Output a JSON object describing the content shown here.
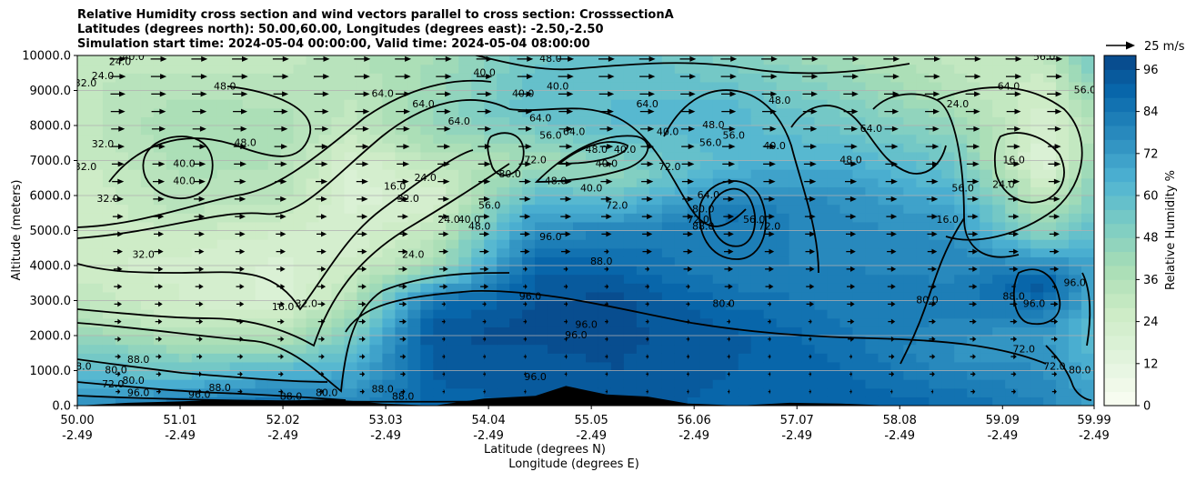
{
  "chart_data": {
    "type": "heatmap",
    "title_lines": [
      "Relative Humidity cross section and wind vectors parallel to cross section: CrosssectionA",
      "Latitudes (degrees north): 50.00,60.00, Longitudes (degrees east): -2.50,-2.50",
      "Simulation start time: 2024-05-04 00:00:00, Valid time: 2024-05-04 08:00:00"
    ],
    "xlabel_lines": [
      "Latitude (degrees N)",
      "Longitude (degrees E)"
    ],
    "ylabel": "Altitude (meters)",
    "x_ticks": [
      {
        "lat": "50.00",
        "lon": "-2.49",
        "v": 50.0
      },
      {
        "lat": "51.01",
        "lon": "-2.49",
        "v": 51.01
      },
      {
        "lat": "52.02",
        "lon": "-2.49",
        "v": 52.02
      },
      {
        "lat": "53.03",
        "lon": "-2.49",
        "v": 53.03
      },
      {
        "lat": "54.04",
        "lon": "-2.49",
        "v": 54.04
      },
      {
        "lat": "55.05",
        "lon": "-2.49",
        "v": 55.05
      },
      {
        "lat": "56.06",
        "lon": "-2.49",
        "v": 56.06
      },
      {
        "lat": "57.07",
        "lon": "-2.49",
        "v": 57.07
      },
      {
        "lat": "58.08",
        "lon": "-2.49",
        "v": 58.08
      },
      {
        "lat": "59.09",
        "lon": "-2.49",
        "v": 59.09
      },
      {
        "lat": "59.99",
        "lon": "-2.49",
        "v": 59.99
      }
    ],
    "xlim": [
      50.0,
      59.99
    ],
    "ylim": [
      0,
      10000
    ],
    "y_ticks": [
      {
        "label": "0.0",
        "v": 0
      },
      {
        "label": "1000.0",
        "v": 1000
      },
      {
        "label": "2000.0",
        "v": 2000
      },
      {
        "label": "3000.0",
        "v": 3000
      },
      {
        "label": "4000.0",
        "v": 4000
      },
      {
        "label": "5000.0",
        "v": 5000
      },
      {
        "label": "6000.0",
        "v": 6000
      },
      {
        "label": "7000.0",
        "v": 7000
      },
      {
        "label": "8000.0",
        "v": 8000
      },
      {
        "label": "9000.0",
        "v": 9000
      },
      {
        "label": "10000.0",
        "v": 10000
      }
    ],
    "grid": "horizontal",
    "colorbar": {
      "label": "Relative Humidity %",
      "range": [
        0,
        100
      ],
      "ticks": [
        {
          "label": "0",
          "v": 0
        },
        {
          "label": "12",
          "v": 12
        },
        {
          "label": "24",
          "v": 24
        },
        {
          "label": "36",
          "v": 36
        },
        {
          "label": "48",
          "v": 48
        },
        {
          "label": "60",
          "v": 60
        },
        {
          "label": "72",
          "v": 72
        },
        {
          "label": "84",
          "v": 84
        },
        {
          "label": "96",
          "v": 96
        }
      ],
      "levels": 25,
      "colors": [
        "#f7fcf0",
        "#e0f3db",
        "#ccebc5",
        "#a8ddb5",
        "#7bccc4",
        "#4eb3d3",
        "#2b8cbe",
        "#0868ac",
        "#084081"
      ]
    },
    "quiver_key": {
      "label": "25 m/s",
      "speed": 25
    },
    "rh_profiles": [
      {
        "lat": 50.0,
        "rh": [
          {
            "z": 0,
            "rh": 75
          },
          {
            "z": 800,
            "rh": 62
          },
          {
            "z": 1500,
            "rh": 55
          },
          {
            "z": 2500,
            "rh": 35
          },
          {
            "z": 4000,
            "rh": 25
          },
          {
            "z": 6000,
            "rh": 24
          },
          {
            "z": 8000,
            "rh": 30
          },
          {
            "z": 10000,
            "rh": 32
          }
        ]
      },
      {
        "lat": 51.0,
        "rh": [
          {
            "z": 0,
            "rh": 85
          },
          {
            "z": 800,
            "rh": 60
          },
          {
            "z": 1500,
            "rh": 45
          },
          {
            "z": 2500,
            "rh": 26
          },
          {
            "z": 4000,
            "rh": 22
          },
          {
            "z": 6000,
            "rh": 35
          },
          {
            "z": 8000,
            "rh": 40
          },
          {
            "z": 10000,
            "rh": 30
          }
        ]
      },
      {
        "lat": 52.0,
        "rh": [
          {
            "z": 0,
            "rh": 88
          },
          {
            "z": 800,
            "rh": 70
          },
          {
            "z": 1500,
            "rh": 45
          },
          {
            "z": 3000,
            "rh": 18
          },
          {
            "z": 4500,
            "rh": 20
          },
          {
            "z": 6000,
            "rh": 34
          },
          {
            "z": 8000,
            "rh": 38
          },
          {
            "z": 10000,
            "rh": 30
          }
        ]
      },
      {
        "lat": 52.7,
        "rh": [
          {
            "z": 0,
            "rh": 80
          },
          {
            "z": 1500,
            "rh": 60
          },
          {
            "z": 3000,
            "rh": 35
          },
          {
            "z": 4500,
            "rh": 22
          },
          {
            "z": 6500,
            "rh": 18
          },
          {
            "z": 8000,
            "rh": 30
          },
          {
            "z": 10000,
            "rh": 35
          }
        ]
      },
      {
        "lat": 53.5,
        "rh": [
          {
            "z": 0,
            "rh": 90
          },
          {
            "z": 2000,
            "rh": 96
          },
          {
            "z": 3000,
            "rh": 85
          },
          {
            "z": 4000,
            "rh": 40
          },
          {
            "z": 6000,
            "rh": 20
          },
          {
            "z": 8000,
            "rh": 45
          },
          {
            "z": 10000,
            "rh": 40
          }
        ]
      },
      {
        "lat": 54.5,
        "rh": [
          {
            "z": 0,
            "rh": 92
          },
          {
            "z": 2500,
            "rh": 98
          },
          {
            "z": 4000,
            "rh": 90
          },
          {
            "z": 5500,
            "rh": 70
          },
          {
            "z": 7000,
            "rh": 40
          },
          {
            "z": 8500,
            "rh": 60
          },
          {
            "z": 10000,
            "rh": 55
          }
        ]
      },
      {
        "lat": 55.3,
        "rh": [
          {
            "z": 0,
            "rh": 95
          },
          {
            "z": 3000,
            "rh": 98
          },
          {
            "z": 5000,
            "rh": 80
          },
          {
            "z": 6500,
            "rh": 45
          },
          {
            "z": 8000,
            "rh": 60
          },
          {
            "z": 10000,
            "rh": 60
          }
        ]
      },
      {
        "lat": 56.4,
        "rh": [
          {
            "z": 0,
            "rh": 90
          },
          {
            "z": 2000,
            "rh": 94
          },
          {
            "z": 4000,
            "rh": 80
          },
          {
            "z": 5500,
            "rh": 85
          },
          {
            "z": 7000,
            "rh": 62
          },
          {
            "z": 8500,
            "rh": 62
          },
          {
            "z": 10000,
            "rh": 50
          }
        ]
      },
      {
        "lat": 57.5,
        "rh": [
          {
            "z": 0,
            "rh": 92
          },
          {
            "z": 2000,
            "rh": 85
          },
          {
            "z": 4000,
            "rh": 80
          },
          {
            "z": 6000,
            "rh": 75
          },
          {
            "z": 8000,
            "rh": 55
          },
          {
            "z": 10000,
            "rh": 40
          }
        ]
      },
      {
        "lat": 58.6,
        "rh": [
          {
            "z": 0,
            "rh": 88
          },
          {
            "z": 1500,
            "rh": 75
          },
          {
            "z": 3000,
            "rh": 82
          },
          {
            "z": 5000,
            "rh": 75
          },
          {
            "z": 7000,
            "rh": 55
          },
          {
            "z": 9000,
            "rh": 35
          },
          {
            "z": 10000,
            "rh": 30
          }
        ]
      },
      {
        "lat": 59.5,
        "rh": [
          {
            "z": 0,
            "rh": 80
          },
          {
            "z": 2000,
            "rh": 72
          },
          {
            "z": 3500,
            "rh": 95
          },
          {
            "z": 5000,
            "rh": 45
          },
          {
            "z": 7000,
            "rh": 15
          },
          {
            "z": 9000,
            "rh": 25
          },
          {
            "z": 10000,
            "rh": 30
          }
        ]
      },
      {
        "lat": 59.99,
        "rh": [
          {
            "z": 0,
            "rh": 70
          },
          {
            "z": 2000,
            "rh": 60
          },
          {
            "z": 4000,
            "rh": 70
          },
          {
            "z": 6000,
            "rh": 50
          },
          {
            "z": 8000,
            "rh": 35
          },
          {
            "z": 10000,
            "rh": 55
          }
        ]
      }
    ],
    "terrain": [
      {
        "lat": 50.0,
        "z": 0
      },
      {
        "lat": 50.5,
        "z": 80
      },
      {
        "lat": 51.0,
        "z": 120
      },
      {
        "lat": 51.5,
        "z": 170
      },
      {
        "lat": 52.0,
        "z": 140
      },
      {
        "lat": 52.5,
        "z": 180
      },
      {
        "lat": 53.0,
        "z": 60
      },
      {
        "lat": 53.5,
        "z": 0
      },
      {
        "lat": 54.0,
        "z": 200
      },
      {
        "lat": 54.5,
        "z": 280
      },
      {
        "lat": 54.8,
        "z": 560
      },
      {
        "lat": 55.2,
        "z": 320
      },
      {
        "lat": 55.6,
        "z": 260
      },
      {
        "lat": 56.0,
        "z": 60
      },
      {
        "lat": 56.5,
        "z": 0
      },
      {
        "lat": 57.0,
        "z": 80
      },
      {
        "lat": 57.5,
        "z": 60
      },
      {
        "lat": 58.0,
        "z": 0
      },
      {
        "lat": 59.99,
        "z": 0
      }
    ],
    "contour_labels": [
      {
        "text": "40.0",
        "lat": 50.55,
        "z": 9950
      },
      {
        "text": "32.0",
        "lat": 50.08,
        "z": 9200
      },
      {
        "text": "24.0",
        "lat": 50.25,
        "z": 9400
      },
      {
        "text": "24.0",
        "lat": 50.42,
        "z": 9800
      },
      {
        "text": "48.0",
        "lat": 51.45,
        "z": 9100
      },
      {
        "text": "48.0",
        "lat": 51.65,
        "z": 7500
      },
      {
        "text": "40.0",
        "lat": 51.05,
        "z": 6900
      },
      {
        "text": "40.0",
        "lat": 51.05,
        "z": 6400
      },
      {
        "text": "32.0",
        "lat": 50.25,
        "z": 7450
      },
      {
        "text": "32.0",
        "lat": 50.08,
        "z": 6800
      },
      {
        "text": "32.0",
        "lat": 50.3,
        "z": 5900
      },
      {
        "text": "32.0",
        "lat": 50.65,
        "z": 4300
      },
      {
        "text": "16.0",
        "lat": 52.02,
        "z": 2800
      },
      {
        "text": "32.0",
        "lat": 52.25,
        "z": 2900
      },
      {
        "text": "16.0",
        "lat": 53.12,
        "z": 6250
      },
      {
        "text": "32.0",
        "lat": 53.25,
        "z": 5900
      },
      {
        "text": "24.0",
        "lat": 53.42,
        "z": 6500
      },
      {
        "text": "24.0",
        "lat": 53.65,
        "z": 5300
      },
      {
        "text": "24.0",
        "lat": 53.3,
        "z": 4300
      },
      {
        "text": "64.0",
        "lat": 53.0,
        "z": 8900
      },
      {
        "text": "64.0",
        "lat": 53.4,
        "z": 8600
      },
      {
        "text": "64.0",
        "lat": 53.75,
        "z": 8100
      },
      {
        "text": "40.0",
        "lat": 54.0,
        "z": 9500
      },
      {
        "text": "48.0",
        "lat": 54.65,
        "z": 9900
      },
      {
        "text": "40.0",
        "lat": 54.38,
        "z": 8900
      },
      {
        "text": "40.0",
        "lat": 54.72,
        "z": 9100
      },
      {
        "text": "64.0",
        "lat": 54.55,
        "z": 8200
      },
      {
        "text": "56.0",
        "lat": 54.65,
        "z": 7700
      },
      {
        "text": "64.0",
        "lat": 54.88,
        "z": 7800
      },
      {
        "text": "48.0",
        "lat": 55.1,
        "z": 7300
      },
      {
        "text": "40.0",
        "lat": 55.38,
        "z": 7300
      },
      {
        "text": "40.0",
        "lat": 55.2,
        "z": 6900
      },
      {
        "text": "40.0",
        "lat": 55.05,
        "z": 6200
      },
      {
        "text": "72.0",
        "lat": 54.5,
        "z": 7000
      },
      {
        "text": "80.0",
        "lat": 54.25,
        "z": 6600
      },
      {
        "text": "48.0",
        "lat": 54.7,
        "z": 6400
      },
      {
        "text": "56.0",
        "lat": 54.05,
        "z": 5700
      },
      {
        "text": "40.0",
        "lat": 53.85,
        "z": 5300
      },
      {
        "text": "48.0",
        "lat": 53.95,
        "z": 5100
      },
      {
        "text": "72.0",
        "lat": 55.3,
        "z": 5700
      },
      {
        "text": "96.0",
        "lat": 54.65,
        "z": 4800
      },
      {
        "text": "88.0",
        "lat": 55.15,
        "z": 4100
      },
      {
        "text": "64.0",
        "lat": 55.6,
        "z": 8600
      },
      {
        "text": "48.0",
        "lat": 56.25,
        "z": 8000
      },
      {
        "text": "56.0",
        "lat": 56.22,
        "z": 7500
      },
      {
        "text": "56.0",
        "lat": 56.45,
        "z": 7700
      },
      {
        "text": "72.0",
        "lat": 55.82,
        "z": 6800
      },
      {
        "text": "40.0",
        "lat": 55.8,
        "z": 7800
      },
      {
        "text": "64.0",
        "lat": 56.2,
        "z": 6000
      },
      {
        "text": "80.0",
        "lat": 56.15,
        "z": 5600
      },
      {
        "text": "72.0",
        "lat": 56.1,
        "z": 5300
      },
      {
        "text": "88.0",
        "lat": 56.15,
        "z": 5100
      },
      {
        "text": "56.0",
        "lat": 56.65,
        "z": 5300
      },
      {
        "text": "72.0",
        "lat": 56.8,
        "z": 5100
      },
      {
        "text": "48.0",
        "lat": 56.9,
        "z": 8700
      },
      {
        "text": "40.0",
        "lat": 56.85,
        "z": 7400
      },
      {
        "text": "64.0",
        "lat": 57.8,
        "z": 7900
      },
      {
        "text": "48.0",
        "lat": 57.6,
        "z": 7000
      },
      {
        "text": "24.0",
        "lat": 58.65,
        "z": 8600
      },
      {
        "text": "16.0",
        "lat": 59.2,
        "z": 7000
      },
      {
        "text": "24.0",
        "lat": 59.1,
        "z": 6300
      },
      {
        "text": "56.0",
        "lat": 58.7,
        "z": 6200
      },
      {
        "text": "16.0",
        "lat": 58.55,
        "z": 5300
      },
      {
        "text": "64.0",
        "lat": 59.15,
        "z": 9100
      },
      {
        "text": "56.0",
        "lat": 59.5,
        "z": 9950
      },
      {
        "text": "56.0",
        "lat": 59.9,
        "z": 9000
      },
      {
        "text": "80.0",
        "lat": 58.35,
        "z": 3000
      },
      {
        "text": "88.0",
        "lat": 59.2,
        "z": 3100
      },
      {
        "text": "96.0",
        "lat": 59.4,
        "z": 2900
      },
      {
        "text": "96.0",
        "lat": 59.8,
        "z": 3500
      },
      {
        "text": "80.0",
        "lat": 56.35,
        "z": 2900
      },
      {
        "text": "96.0",
        "lat": 55.0,
        "z": 2300
      },
      {
        "text": "96.0",
        "lat": 54.9,
        "z": 2000
      },
      {
        "text": "96.0",
        "lat": 54.45,
        "z": 3100
      },
      {
        "text": "96.0",
        "lat": 54.5,
        "z": 800
      },
      {
        "text": "72.0",
        "lat": 59.3,
        "z": 1600
      },
      {
        "text": "72.0",
        "lat": 59.6,
        "z": 1100
      },
      {
        "text": "80.0",
        "lat": 59.85,
        "z": 1000
      },
      {
        "text": "88.0",
        "lat": 50.03,
        "z": 1100
      },
      {
        "text": "80.0",
        "lat": 50.38,
        "z": 1000
      },
      {
        "text": "88.0",
        "lat": 50.6,
        "z": 1300
      },
      {
        "text": "72.0",
        "lat": 50.35,
        "z": 600
      },
      {
        "text": "80.0",
        "lat": 50.55,
        "z": 700
      },
      {
        "text": "96.0",
        "lat": 50.6,
        "z": 350
      },
      {
        "text": "96.0",
        "lat": 51.2,
        "z": 300
      },
      {
        "text": "88.0",
        "lat": 51.4,
        "z": 500
      },
      {
        "text": "88.0",
        "lat": 52.1,
        "z": 250
      },
      {
        "text": "80.0",
        "lat": 52.45,
        "z": 350
      },
      {
        "text": "88.0",
        "lat": 53.0,
        "z": 450
      },
      {
        "text": "88.0",
        "lat": 53.2,
        "z": 250
      }
    ]
  }
}
